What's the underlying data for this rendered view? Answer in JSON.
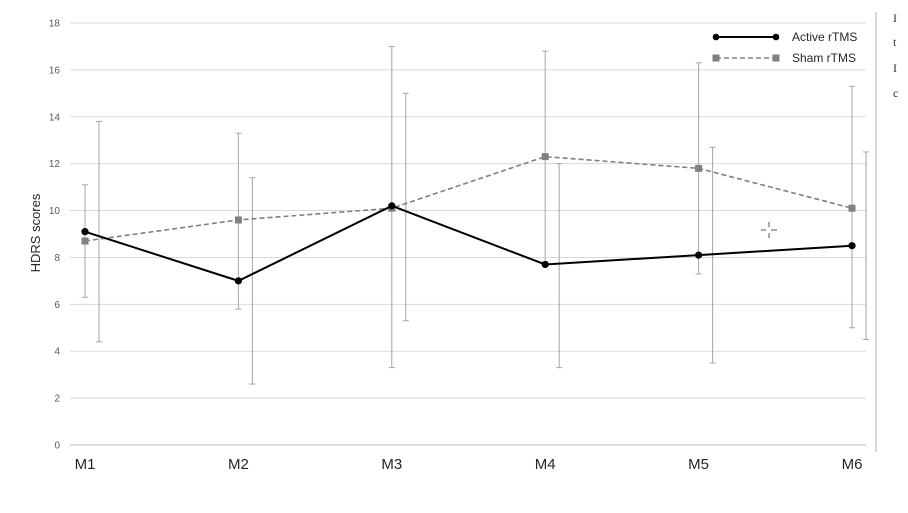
{
  "chart_data": {
    "type": "line",
    "ylabel": "HDRS scores",
    "xlabel": "",
    "ylim": [
      0,
      18
    ],
    "yticks": [
      0,
      2,
      4,
      6,
      8,
      10,
      12,
      14,
      16,
      18
    ],
    "categories": [
      "M1",
      "M2",
      "M3",
      "M4",
      "M5",
      "M6"
    ],
    "grid": "horizontal",
    "legend": "top-right",
    "series": [
      {
        "name": "Active rTMS",
        "color": "#000000",
        "style": "solid",
        "marker": "circle",
        "values": [
          9.1,
          7.0,
          10.2,
          7.7,
          8.1,
          8.5
        ],
        "error_low": [
          4.4,
          2.6,
          5.3,
          3.3,
          3.5,
          4.5
        ],
        "error_high": [
          13.8,
          11.4,
          15.0,
          12.0,
          12.7,
          12.5
        ]
      },
      {
        "name": "Sham rTMS",
        "color": "#808080",
        "style": "dashed",
        "marker": "square",
        "values": [
          8.7,
          9.6,
          10.1,
          12.3,
          11.8,
          10.1
        ],
        "error_low": [
          6.3,
          5.8,
          3.3,
          7.8,
          7.3,
          5.0
        ],
        "error_high": [
          11.1,
          13.3,
          17.0,
          16.8,
          16.3,
          15.3
        ]
      }
    ]
  },
  "side_text": [
    "I",
    "t",
    "I",
    "c"
  ]
}
